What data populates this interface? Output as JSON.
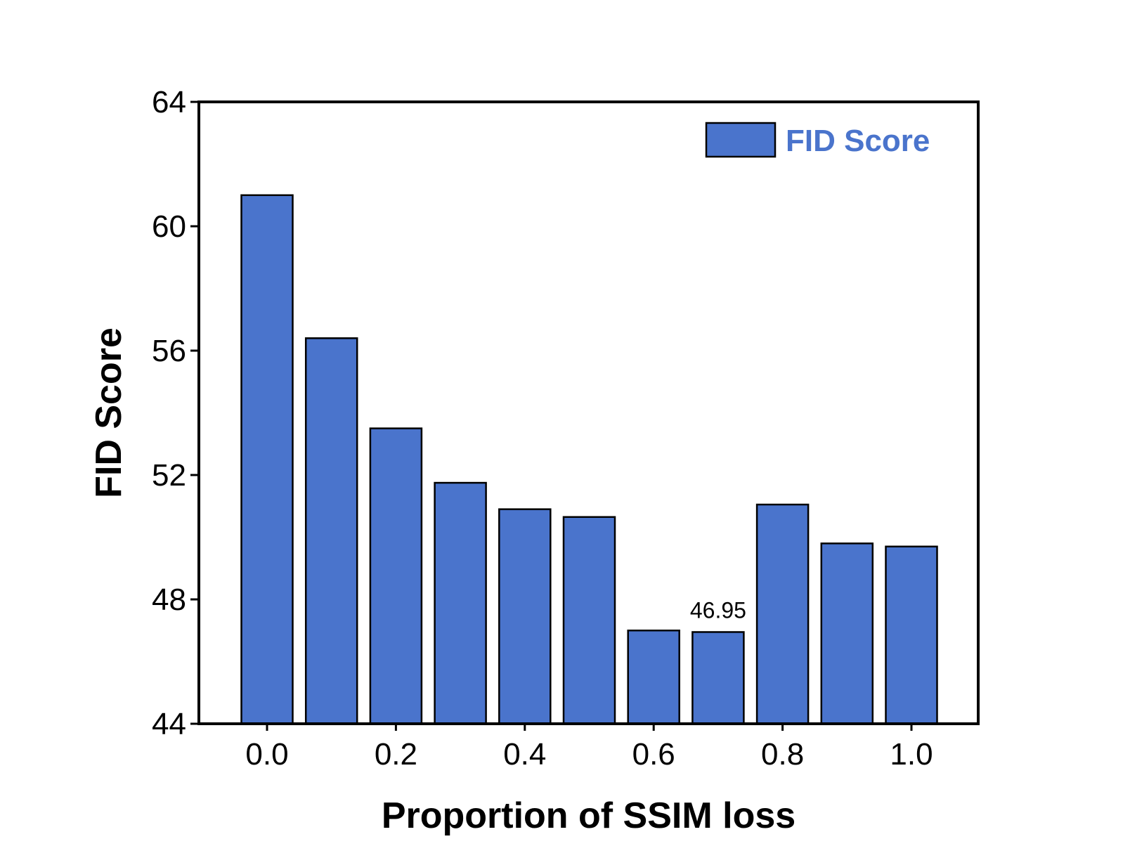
{
  "chart_data": {
    "type": "bar",
    "x": [
      0.0,
      0.1,
      0.2,
      0.3,
      0.4,
      0.5,
      0.6,
      0.7,
      0.8,
      0.9,
      1.0
    ],
    "series": [
      {
        "name": "FID Score",
        "values": [
          61.0,
          56.4,
          53.5,
          51.75,
          50.9,
          50.65,
          47.0,
          46.95,
          51.05,
          49.8,
          49.7
        ]
      }
    ],
    "xlabel": "Proportion of SSIM loss",
    "ylabel": "FID Score",
    "xticks": [
      "0.0",
      "0.2",
      "0.4",
      "0.6",
      "0.8",
      "1.0"
    ],
    "yticks": [
      "44",
      "48",
      "52",
      "56",
      "60",
      "64"
    ],
    "ylim": [
      44,
      64
    ],
    "legend_position": "top-right",
    "grid": false,
    "annotations": [
      {
        "index": 7,
        "text": "46.95"
      }
    ],
    "colors": {
      "bar": "#4a74cc",
      "bar_edge": "#000000",
      "legend_text": "#4a74cc"
    }
  }
}
